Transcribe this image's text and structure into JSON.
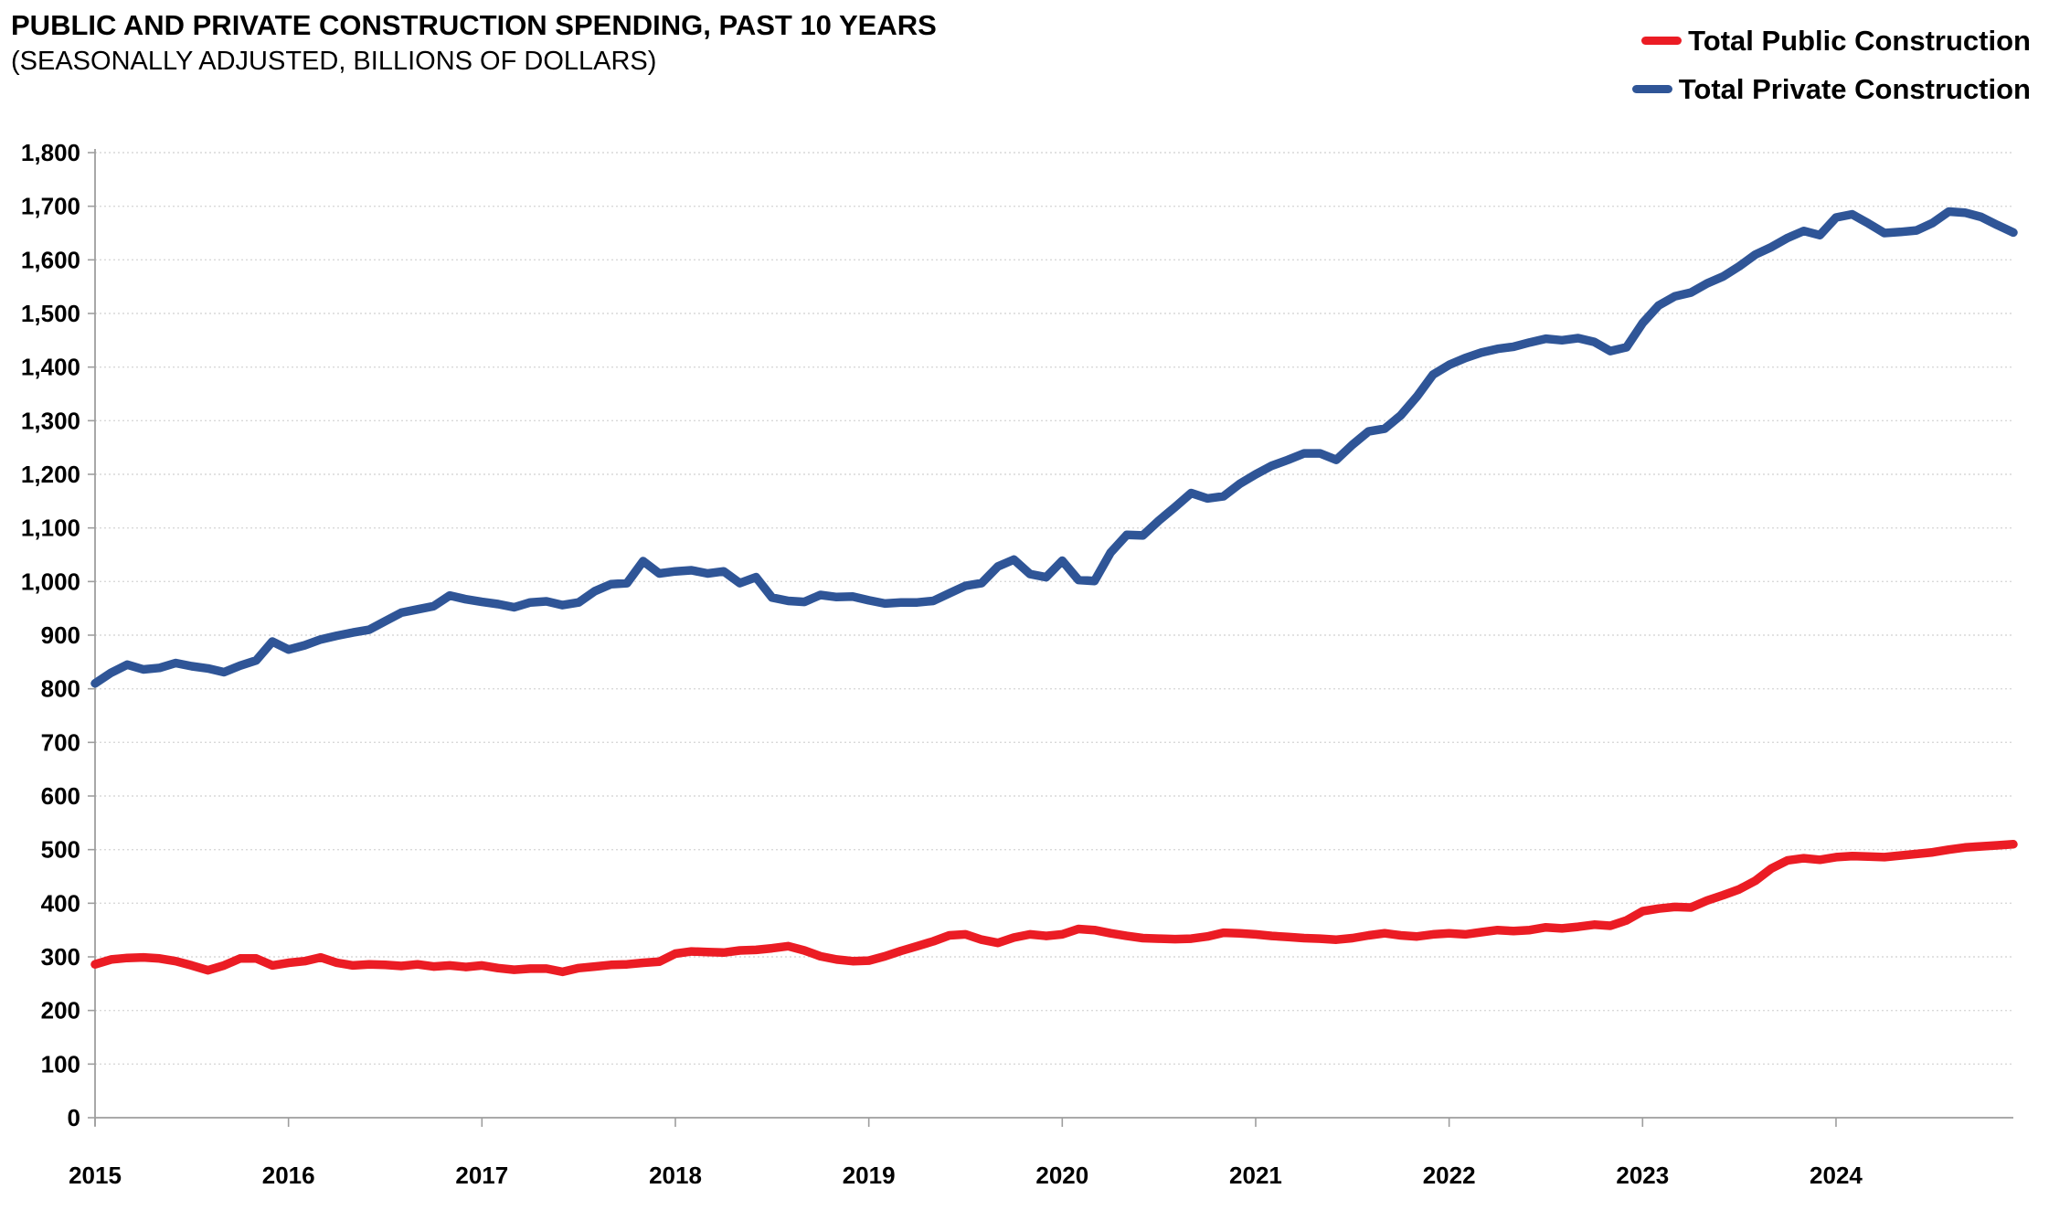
{
  "header": {
    "title": "PUBLIC AND PRIVATE CONSTRUCTION SPENDING, PAST 10 YEARS",
    "subtitle": "(SEASONALLY ADJUSTED, BILLIONS OF DOLLARS)"
  },
  "legend": {
    "position": "top-right",
    "items": [
      {
        "label": "Total Public Construction",
        "color": "#EB1C24"
      },
      {
        "label": "Total Private Construction",
        "color": "#2F5597"
      }
    ]
  },
  "colors": {
    "public_line": "#EB1C24",
    "private_line": "#2F5597",
    "gridline": "#D9D9D9",
    "axis": "#9E9E9E",
    "background": "#FFFFFF"
  },
  "chart_data": {
    "type": "line",
    "title": "PUBLIC AND PRIVATE CONSTRUCTION SPENDING, PAST 10 YEARS",
    "subtitle": "(SEASONALLY ADJUSTED, BILLIONS OF DOLLARS)",
    "xlabel": "",
    "ylabel": "",
    "ylim": [
      0,
      1800
    ],
    "y_step": 100,
    "grid": "horizontal",
    "legend_position": "top-right",
    "y_tick_labels": [
      "0",
      "100",
      "200",
      "300",
      "400",
      "500",
      "600",
      "700",
      "800",
      "900",
      "1,000",
      "1,100",
      "1,200",
      "1,300",
      "1,400",
      "1,500",
      "1,600",
      "1,700",
      "1,800"
    ],
    "x_tick_labels": [
      "2015",
      "2016",
      "2017",
      "2018",
      "2019",
      "2020",
      "2021",
      "2022",
      "2023",
      "2024"
    ],
    "x": [
      "2015-01",
      "2015-02",
      "2015-03",
      "2015-04",
      "2015-05",
      "2015-06",
      "2015-07",
      "2015-08",
      "2015-09",
      "2015-10",
      "2015-11",
      "2015-12",
      "2016-01",
      "2016-02",
      "2016-03",
      "2016-04",
      "2016-05",
      "2016-06",
      "2016-07",
      "2016-08",
      "2016-09",
      "2016-10",
      "2016-11",
      "2016-12",
      "2017-01",
      "2017-02",
      "2017-03",
      "2017-04",
      "2017-05",
      "2017-06",
      "2017-07",
      "2017-08",
      "2017-09",
      "2017-10",
      "2017-11",
      "2017-12",
      "2018-01",
      "2018-02",
      "2018-03",
      "2018-04",
      "2018-05",
      "2018-06",
      "2018-07",
      "2018-08",
      "2018-09",
      "2018-10",
      "2018-11",
      "2018-12",
      "2019-01",
      "2019-02",
      "2019-03",
      "2019-04",
      "2019-05",
      "2019-06",
      "2019-07",
      "2019-08",
      "2019-09",
      "2019-10",
      "2019-11",
      "2019-12",
      "2020-01",
      "2020-02",
      "2020-03",
      "2020-04",
      "2020-05",
      "2020-06",
      "2020-07",
      "2020-08",
      "2020-09",
      "2020-10",
      "2020-11",
      "2020-12",
      "2021-01",
      "2021-02",
      "2021-03",
      "2021-04",
      "2021-05",
      "2021-06",
      "2021-07",
      "2021-08",
      "2021-09",
      "2021-10",
      "2021-11",
      "2021-12",
      "2022-01",
      "2022-02",
      "2022-03",
      "2022-04",
      "2022-05",
      "2022-06",
      "2022-07",
      "2022-08",
      "2022-09",
      "2022-10",
      "2022-11",
      "2022-12",
      "2023-01",
      "2023-02",
      "2023-03",
      "2023-04",
      "2023-05",
      "2023-06",
      "2023-07",
      "2023-08",
      "2023-09",
      "2023-10",
      "2023-11",
      "2023-12",
      "2024-01",
      "2024-02",
      "2024-03",
      "2024-04",
      "2024-05",
      "2024-06",
      "2024-07",
      "2024-08",
      "2024-09",
      "2024-10",
      "2024-11",
      "2024-12"
    ],
    "series": [
      {
        "name": "Total Public Construction",
        "color": "#EB1C24",
        "values": [
          286,
          295,
          298,
          299,
          297,
          292,
          284,
          275,
          284,
          297,
          297,
          284,
          289,
          292,
          299,
          289,
          284,
          286,
          285,
          283,
          286,
          282,
          284,
          281,
          284,
          279,
          276,
          278,
          278,
          272,
          279,
          282,
          285,
          286,
          289,
          291,
          306,
          310,
          309,
          308,
          312,
          313,
          316,
          320,
          312,
          301,
          295,
          292,
          293,
          301,
          311,
          320,
          329,
          340,
          342,
          332,
          326,
          336,
          342,
          339,
          342,
          352,
          350,
          344,
          339,
          335,
          334,
          333,
          334,
          338,
          345,
          344,
          342,
          339,
          337,
          335,
          334,
          332,
          335,
          340,
          344,
          340,
          338,
          342,
          344,
          342,
          346,
          350,
          348,
          350,
          355,
          353,
          356,
          360,
          358,
          368,
          385,
          390,
          393,
          392,
          405,
          415,
          426,
          442,
          465,
          480,
          484,
          481,
          486,
          488,
          487,
          486,
          489,
          492,
          495,
          500,
          504,
          506,
          508,
          510
        ]
      },
      {
        "name": "Total Private Construction",
        "color": "#2F5597",
        "values": [
          810,
          830,
          845,
          836,
          839,
          848,
          842,
          838,
          831,
          843,
          853,
          888,
          873,
          881,
          892,
          899,
          905,
          910,
          926,
          942,
          948,
          954,
          974,
          967,
          962,
          958,
          952,
          961,
          963,
          956,
          961,
          982,
          995,
          997,
          1038,
          1015,
          1019,
          1021,
          1015,
          1019,
          997,
          1008,
          970,
          964,
          962,
          975,
          971,
          972,
          965,
          959,
          961,
          961,
          964,
          978,
          992,
          997,
          1028,
          1041,
          1014,
          1008,
          1039,
          1003,
          1001,
          1054,
          1087,
          1086,
          1114,
          1139,
          1165,
          1155,
          1159,
          1182,
          1200,
          1216,
          1227,
          1239,
          1239,
          1227,
          1255,
          1280,
          1285,
          1310,
          1345,
          1386,
          1404,
          1417,
          1427,
          1434,
          1438,
          1446,
          1453,
          1450,
          1454,
          1447,
          1430,
          1437,
          1482,
          1515,
          1532,
          1539,
          1556,
          1569,
          1588,
          1610,
          1624,
          1641,
          1654,
          1646,
          1679,
          1685,
          1668,
          1650,
          1652,
          1655,
          1669,
          1690,
          1688,
          1680,
          1665,
          1651
        ]
      }
    ]
  }
}
